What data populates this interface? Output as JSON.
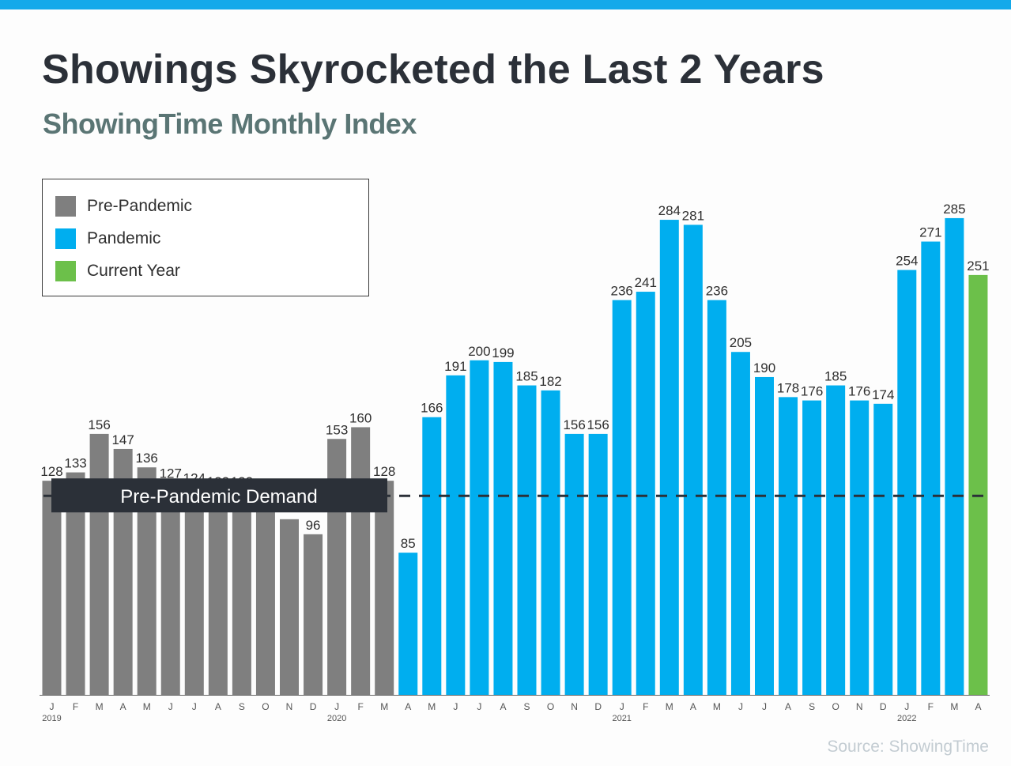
{
  "header": {
    "title": "Showings Skyrocketed the Last 2 Years",
    "subtitle": "ShowingTime Monthly Index"
  },
  "legend": [
    {
      "label": "Pre-Pandemic",
      "color": "#7f7f7f"
    },
    {
      "label": "Pandemic",
      "color": "#00aeef"
    },
    {
      "label": "Current Year",
      "color": "#6cc04a"
    }
  ],
  "source": "Source: ShowingTime",
  "chart_data": {
    "type": "bar",
    "title": "Showings Skyrocketed the Last 2 Years",
    "subtitle": "ShowingTime Monthly Index",
    "xlabel": "",
    "ylabel": "",
    "ylim": [
      0,
      290
    ],
    "grid": false,
    "legend_position": "top-left",
    "categories": [
      "J",
      "F",
      "M",
      "A",
      "M",
      "J",
      "J",
      "A",
      "S",
      "O",
      "N",
      "D",
      "J",
      "F",
      "M",
      "A",
      "M",
      "J",
      "J",
      "A",
      "S",
      "O",
      "N",
      "D",
      "J",
      "F",
      "M",
      "A",
      "M",
      "J",
      "J",
      "A",
      "S",
      "O",
      "N",
      "D",
      "J",
      "F",
      "M",
      "A"
    ],
    "year_labels": [
      {
        "index": 0,
        "label": "2019"
      },
      {
        "index": 12,
        "label": "2020"
      },
      {
        "index": 24,
        "label": "2021"
      },
      {
        "index": 36,
        "label": "2022"
      }
    ],
    "values": [
      128,
      133,
      156,
      147,
      136,
      127,
      124,
      122,
      122,
      113,
      105,
      96,
      153,
      160,
      128,
      85,
      166,
      191,
      200,
      199,
      185,
      182,
      156,
      156,
      236,
      241,
      284,
      281,
      236,
      205,
      190,
      178,
      176,
      185,
      176,
      174,
      254,
      271,
      285,
      251
    ],
    "value_labels_visible": [
      true,
      true,
      true,
      true,
      true,
      true,
      true,
      true,
      true,
      false,
      false,
      true,
      true,
      true,
      true,
      true,
      true,
      true,
      true,
      true,
      true,
      true,
      true,
      true,
      true,
      true,
      true,
      true,
      true,
      true,
      true,
      true,
      true,
      true,
      true,
      true,
      true,
      true,
      true,
      true
    ],
    "series_by_index": [
      "Pre-Pandemic",
      "Pre-Pandemic",
      "Pre-Pandemic",
      "Pre-Pandemic",
      "Pre-Pandemic",
      "Pre-Pandemic",
      "Pre-Pandemic",
      "Pre-Pandemic",
      "Pre-Pandemic",
      "Pre-Pandemic",
      "Pre-Pandemic",
      "Pre-Pandemic",
      "Pre-Pandemic",
      "Pre-Pandemic",
      "Pre-Pandemic",
      "Pandemic",
      "Pandemic",
      "Pandemic",
      "Pandemic",
      "Pandemic",
      "Pandemic",
      "Pandemic",
      "Pandemic",
      "Pandemic",
      "Pandemic",
      "Pandemic",
      "Pandemic",
      "Pandemic",
      "Pandemic",
      "Pandemic",
      "Pandemic",
      "Pandemic",
      "Pandemic",
      "Pandemic",
      "Pandemic",
      "Pandemic",
      "Pandemic",
      "Pandemic",
      "Pandemic",
      "Current Year"
    ],
    "reference_line": {
      "label": "Pre-Pandemic Demand",
      "value": 119,
      "style": "dashed"
    }
  }
}
